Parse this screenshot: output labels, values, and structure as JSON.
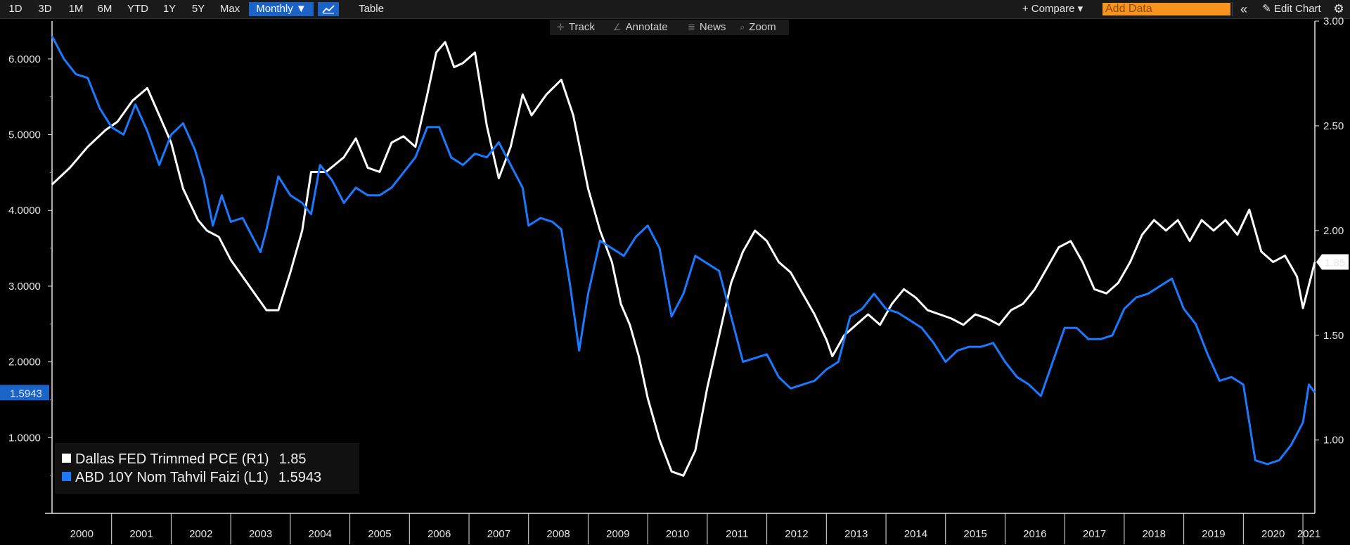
{
  "toolbar": {
    "ranges": [
      "1D",
      "3D",
      "1M",
      "6M",
      "YTD",
      "1Y",
      "5Y",
      "Max"
    ],
    "frequency": "Monthly ▼",
    "chart_type_icon": "line-chart-icon",
    "table": "Table",
    "compare": "+ Compare ▾",
    "add_data_placeholder": "Add Data",
    "collapse": "«",
    "edit_chart": "✎ Edit Chart",
    "settings_icon": "gear-icon"
  },
  "subtoolbar": {
    "track": "Track",
    "annotate": "Annotate",
    "news": "News",
    "zoom": "Zoom"
  },
  "legend": {
    "pce_label": "Dallas FED Trimmed PCE (R1)",
    "pce_value": "1.85",
    "yield_label": "ABD 10Y Nom Tahvil Faizi (L1)",
    "yield_value": "1.5943"
  },
  "chart_data": {
    "type": "line",
    "x_axis": {
      "categories": [
        "2000",
        "2001",
        "2002",
        "2003",
        "2004",
        "2005",
        "2006",
        "2007",
        "2008",
        "2009",
        "2010",
        "2011",
        "2012",
        "2013",
        "2014",
        "2015",
        "2016",
        "2017",
        "2018",
        "2019",
        "2020",
        "2021"
      ],
      "start_year": 2000,
      "end_year": 2021.2
    },
    "left_axis": {
      "ticks": [
        "6.0000",
        "5.0000",
        "4.0000",
        "3.0000",
        "2.0000",
        "1.0000"
      ],
      "range": [
        0.0,
        6.5
      ],
      "last_value_label": "1.5943"
    },
    "right_axis": {
      "ticks": [
        "3.00",
        "2.50",
        "2.00",
        "1.50",
        "1.00"
      ],
      "range": [
        0.65,
        3.0
      ],
      "last_value_label": "1.85"
    },
    "series": [
      {
        "name": "Dallas FED Trimmed PCE (R1)",
        "axis": "right",
        "color": "#ffffff",
        "points": [
          [
            2000.0,
            2.22
          ],
          [
            2000.3,
            2.3
          ],
          [
            2000.6,
            2.4
          ],
          [
            2000.9,
            2.48
          ],
          [
            2001.1,
            2.52
          ],
          [
            2001.35,
            2.62
          ],
          [
            2001.6,
            2.68
          ],
          [
            2001.8,
            2.55
          ],
          [
            2002.0,
            2.42
          ],
          [
            2002.2,
            2.2
          ],
          [
            2002.45,
            2.05
          ],
          [
            2002.6,
            2.0
          ],
          [
            2002.8,
            1.97
          ],
          [
            2003.0,
            1.86
          ],
          [
            2003.2,
            1.78
          ],
          [
            2003.4,
            1.7
          ],
          [
            2003.6,
            1.62
          ],
          [
            2003.8,
            1.62
          ],
          [
            2004.0,
            1.8
          ],
          [
            2004.2,
            2.0
          ],
          [
            2004.35,
            2.28
          ],
          [
            2004.6,
            2.28
          ],
          [
            2004.9,
            2.35
          ],
          [
            2005.1,
            2.44
          ],
          [
            2005.3,
            2.3
          ],
          [
            2005.5,
            2.28
          ],
          [
            2005.7,
            2.42
          ],
          [
            2005.9,
            2.45
          ],
          [
            2006.1,
            2.4
          ],
          [
            2006.3,
            2.65
          ],
          [
            2006.45,
            2.85
          ],
          [
            2006.6,
            2.9
          ],
          [
            2006.75,
            2.78
          ],
          [
            2006.9,
            2.8
          ],
          [
            2007.1,
            2.85
          ],
          [
            2007.3,
            2.5
          ],
          [
            2007.5,
            2.25
          ],
          [
            2007.7,
            2.4
          ],
          [
            2007.9,
            2.65
          ],
          [
            2008.05,
            2.55
          ],
          [
            2008.3,
            2.65
          ],
          [
            2008.55,
            2.72
          ],
          [
            2008.75,
            2.55
          ],
          [
            2009.0,
            2.2
          ],
          [
            2009.2,
            2.0
          ],
          [
            2009.4,
            1.85
          ],
          [
            2009.55,
            1.65
          ],
          [
            2009.7,
            1.55
          ],
          [
            2009.85,
            1.4
          ],
          [
            2010.0,
            1.2
          ],
          [
            2010.2,
            1.0
          ],
          [
            2010.4,
            0.85
          ],
          [
            2010.6,
            0.83
          ],
          [
            2010.8,
            0.95
          ],
          [
            2011.0,
            1.25
          ],
          [
            2011.2,
            1.5
          ],
          [
            2011.4,
            1.75
          ],
          [
            2011.6,
            1.9
          ],
          [
            2011.8,
            2.0
          ],
          [
            2012.0,
            1.95
          ],
          [
            2012.2,
            1.85
          ],
          [
            2012.4,
            1.8
          ],
          [
            2012.6,
            1.7
          ],
          [
            2012.8,
            1.6
          ],
          [
            2013.0,
            1.48
          ],
          [
            2013.1,
            1.4
          ],
          [
            2013.3,
            1.5
          ],
          [
            2013.5,
            1.55
          ],
          [
            2013.7,
            1.6
          ],
          [
            2013.9,
            1.55
          ],
          [
            2014.1,
            1.65
          ],
          [
            2014.3,
            1.72
          ],
          [
            2014.5,
            1.68
          ],
          [
            2014.7,
            1.62
          ],
          [
            2014.9,
            1.6
          ],
          [
            2015.1,
            1.58
          ],
          [
            2015.3,
            1.55
          ],
          [
            2015.5,
            1.6
          ],
          [
            2015.7,
            1.58
          ],
          [
            2015.9,
            1.55
          ],
          [
            2016.1,
            1.62
          ],
          [
            2016.3,
            1.65
          ],
          [
            2016.5,
            1.72
          ],
          [
            2016.7,
            1.82
          ],
          [
            2016.9,
            1.92
          ],
          [
            2017.1,
            1.95
          ],
          [
            2017.3,
            1.85
          ],
          [
            2017.5,
            1.72
          ],
          [
            2017.7,
            1.7
          ],
          [
            2017.9,
            1.75
          ],
          [
            2018.1,
            1.85
          ],
          [
            2018.3,
            1.98
          ],
          [
            2018.5,
            2.05
          ],
          [
            2018.7,
            2.0
          ],
          [
            2018.9,
            2.05
          ],
          [
            2019.1,
            1.95
          ],
          [
            2019.3,
            2.05
          ],
          [
            2019.5,
            2.0
          ],
          [
            2019.7,
            2.05
          ],
          [
            2019.9,
            1.98
          ],
          [
            2020.1,
            2.1
          ],
          [
            2020.3,
            1.9
          ],
          [
            2020.5,
            1.85
          ],
          [
            2020.7,
            1.88
          ],
          [
            2020.9,
            1.78
          ],
          [
            2021.0,
            1.63
          ],
          [
            2021.2,
            1.85
          ]
        ]
      },
      {
        "name": "ABD 10Y Nom Tahvil Faizi (L1)",
        "axis": "left",
        "color": "#1a7aff",
        "points": [
          [
            2000.0,
            6.3
          ],
          [
            2000.2,
            6.0
          ],
          [
            2000.4,
            5.8
          ],
          [
            2000.6,
            5.75
          ],
          [
            2000.8,
            5.35
          ],
          [
            2001.0,
            5.1
          ],
          [
            2001.2,
            5.0
          ],
          [
            2001.4,
            5.4
          ],
          [
            2001.6,
            5.05
          ],
          [
            2001.8,
            4.6
          ],
          [
            2002.0,
            5.0
          ],
          [
            2002.2,
            5.15
          ],
          [
            2002.4,
            4.8
          ],
          [
            2002.55,
            4.4
          ],
          [
            2002.7,
            3.8
          ],
          [
            2002.85,
            4.2
          ],
          [
            2003.0,
            3.85
          ],
          [
            2003.2,
            3.9
          ],
          [
            2003.4,
            3.6
          ],
          [
            2003.5,
            3.45
          ],
          [
            2003.6,
            3.75
          ],
          [
            2003.8,
            4.45
          ],
          [
            2004.0,
            4.2
          ],
          [
            2004.2,
            4.1
          ],
          [
            2004.35,
            3.95
          ],
          [
            2004.5,
            4.6
          ],
          [
            2004.7,
            4.4
          ],
          [
            2004.9,
            4.1
          ],
          [
            2005.1,
            4.3
          ],
          [
            2005.3,
            4.2
          ],
          [
            2005.5,
            4.2
          ],
          [
            2005.7,
            4.3
          ],
          [
            2005.9,
            4.5
          ],
          [
            2006.1,
            4.7
          ],
          [
            2006.3,
            5.1
          ],
          [
            2006.5,
            5.1
          ],
          [
            2006.7,
            4.7
          ],
          [
            2006.9,
            4.6
          ],
          [
            2007.1,
            4.75
          ],
          [
            2007.3,
            4.7
          ],
          [
            2007.5,
            4.9
          ],
          [
            2007.7,
            4.6
          ],
          [
            2007.9,
            4.3
          ],
          [
            2008.0,
            3.8
          ],
          [
            2008.2,
            3.9
          ],
          [
            2008.4,
            3.85
          ],
          [
            2008.55,
            3.75
          ],
          [
            2008.7,
            3.0
          ],
          [
            2008.85,
            2.15
          ],
          [
            2009.0,
            2.9
          ],
          [
            2009.2,
            3.6
          ],
          [
            2009.4,
            3.5
          ],
          [
            2009.6,
            3.4
          ],
          [
            2009.8,
            3.65
          ],
          [
            2010.0,
            3.8
          ],
          [
            2010.2,
            3.5
          ],
          [
            2010.4,
            2.6
          ],
          [
            2010.6,
            2.9
          ],
          [
            2010.8,
            3.4
          ],
          [
            2011.0,
            3.3
          ],
          [
            2011.2,
            3.2
          ],
          [
            2011.4,
            2.6
          ],
          [
            2011.6,
            2.0
          ],
          [
            2011.8,
            2.05
          ],
          [
            2012.0,
            2.1
          ],
          [
            2012.2,
            1.8
          ],
          [
            2012.4,
            1.65
          ],
          [
            2012.6,
            1.7
          ],
          [
            2012.8,
            1.75
          ],
          [
            2013.0,
            1.9
          ],
          [
            2013.2,
            2.0
          ],
          [
            2013.4,
            2.6
          ],
          [
            2013.6,
            2.7
          ],
          [
            2013.8,
            2.9
          ],
          [
            2014.0,
            2.7
          ],
          [
            2014.2,
            2.65
          ],
          [
            2014.4,
            2.55
          ],
          [
            2014.6,
            2.45
          ],
          [
            2014.8,
            2.25
          ],
          [
            2015.0,
            2.0
          ],
          [
            2015.2,
            2.15
          ],
          [
            2015.4,
            2.2
          ],
          [
            2015.6,
            2.2
          ],
          [
            2015.8,
            2.25
          ],
          [
            2016.0,
            2.0
          ],
          [
            2016.2,
            1.8
          ],
          [
            2016.4,
            1.7
          ],
          [
            2016.6,
            1.55
          ],
          [
            2016.8,
            2.0
          ],
          [
            2017.0,
            2.45
          ],
          [
            2017.2,
            2.45
          ],
          [
            2017.4,
            2.3
          ],
          [
            2017.6,
            2.3
          ],
          [
            2017.8,
            2.35
          ],
          [
            2018.0,
            2.7
          ],
          [
            2018.2,
            2.85
          ],
          [
            2018.4,
            2.9
          ],
          [
            2018.6,
            3.0
          ],
          [
            2018.8,
            3.1
          ],
          [
            2019.0,
            2.7
          ],
          [
            2019.2,
            2.5
          ],
          [
            2019.4,
            2.1
          ],
          [
            2019.6,
            1.75
          ],
          [
            2019.8,
            1.8
          ],
          [
            2020.0,
            1.7
          ],
          [
            2020.2,
            0.7
          ],
          [
            2020.4,
            0.65
          ],
          [
            2020.6,
            0.7
          ],
          [
            2020.8,
            0.9
          ],
          [
            2021.0,
            1.2
          ],
          [
            2021.1,
            1.7
          ],
          [
            2021.2,
            1.5943
          ]
        ]
      }
    ]
  }
}
